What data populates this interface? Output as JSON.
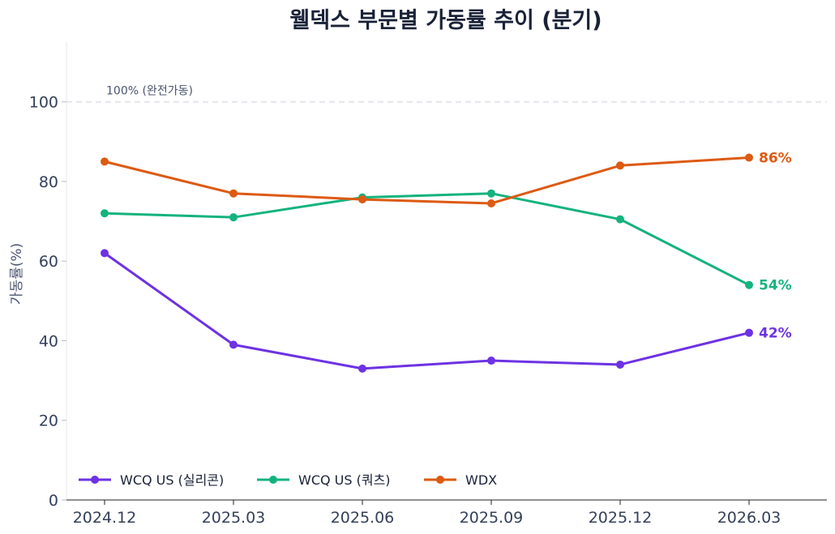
{
  "chart_data": {
    "type": "line",
    "title": "웰덱스 부문별 가동률 추이 (분기)",
    "xlabel": "",
    "ylabel": "가동률(%)",
    "categories": [
      "2024.12",
      "2025.03",
      "2025.06",
      "2025.09",
      "2025.12",
      "2026.03"
    ],
    "ylim": [
      0,
      115
    ],
    "yticks": [
      0,
      20,
      40,
      60,
      80,
      100
    ],
    "grid": false,
    "legend": "bottom-left",
    "reference_line": {
      "value": 100,
      "label": "100% (완전가동)",
      "color": "#e3e6ec"
    },
    "series": [
      {
        "name": "WCQ US (실리콘)",
        "color": "#6d32e3",
        "values": [
          62,
          39,
          33,
          35,
          34,
          42
        ],
        "end_label": "42%"
      },
      {
        "name": "WCQ US (쿼츠)",
        "color": "#14b37d",
        "values": [
          72,
          71,
          76,
          77,
          70.5,
          54
        ],
        "end_label": "54%"
      },
      {
        "name": "WDX",
        "color": "#dd5a12",
        "values": [
          85,
          77,
          75.5,
          74.5,
          84,
          86
        ],
        "end_label": "86%"
      }
    ]
  }
}
